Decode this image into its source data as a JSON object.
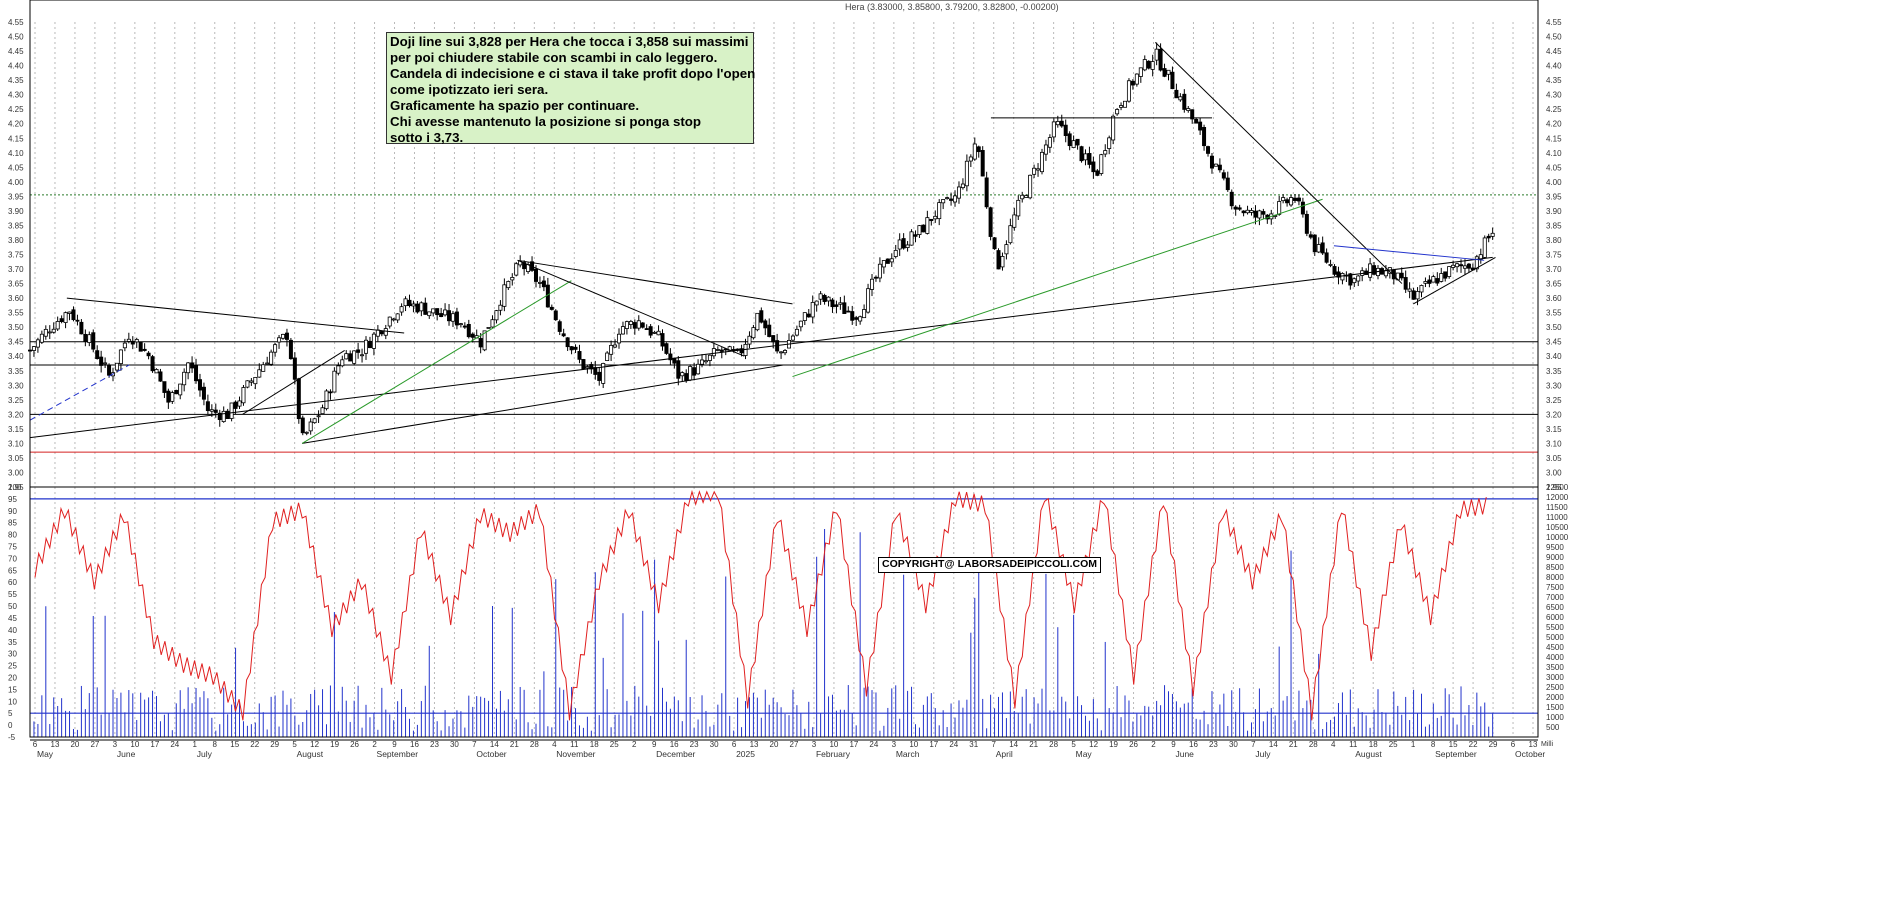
{
  "header": {
    "title": "Hera (3.83000, 3.85800, 3.79200, 3.82800, -0.00200)"
  },
  "annotation": {
    "lines": [
      "Doji line sui 3,828 per Hera che tocca i 3,858 sui massimi",
      "per poi chiudere stabile con scambi in calo leggero.",
      "Candela di indecisione e ci stava il take profit dopo l'open",
      "come ipotizzato ieri sera.",
      "Graficamente ha spazio per continuare.",
      "Chi avesse mantenuto la posizione si ponga stop",
      "sotto i 3,73."
    ]
  },
  "watermark": "COPYRIGHT@ LABORSADEIPICCOLI.COM",
  "chart_data": [
    {
      "type": "candlestick",
      "title": "Hera (3.83000, 3.85800, 3.79200, 3.82800, -0.00200)",
      "ylim": [
        2.95,
        4.55
      ],
      "y_ticks": [
        "4.55",
        "4.50",
        "4.45",
        "4.40",
        "4.35",
        "4.30",
        "4.25",
        "4.20",
        "4.15",
        "4.10",
        "4.05",
        "4.00",
        "3.95",
        "3.90",
        "3.85",
        "3.80",
        "3.75",
        "3.70",
        "3.65",
        "3.60",
        "3.55",
        "3.50",
        "3.45",
        "3.40",
        "3.35",
        "3.30",
        "3.25",
        "3.20",
        "3.15",
        "3.10",
        "3.05",
        "3.00",
        "2.95"
      ],
      "last": {
        "open": 3.83,
        "high": 3.858,
        "low": 3.792,
        "close": 3.828,
        "change": -0.002
      },
      "close_path": [
        [
          "2024-05-01",
          3.42
        ],
        [
          "2024-05-08",
          3.5
        ],
        [
          "2024-05-15",
          3.56
        ],
        [
          "2024-05-22",
          3.45
        ],
        [
          "2024-05-29",
          3.33
        ],
        [
          "2024-06-05",
          3.48
        ],
        [
          "2024-06-12",
          3.4
        ],
        [
          "2024-06-19",
          3.24
        ],
        [
          "2024-06-26",
          3.38
        ],
        [
          "2024-07-03",
          3.21
        ],
        [
          "2024-07-10",
          3.2
        ],
        [
          "2024-07-17",
          3.3
        ],
        [
          "2024-07-24",
          3.4
        ],
        [
          "2024-07-31",
          3.48
        ],
        [
          "2024-08-05",
          3.11
        ],
        [
          "2024-08-12",
          3.22
        ],
        [
          "2024-08-19",
          3.4
        ],
        [
          "2024-08-26",
          3.42
        ],
        [
          "2024-09-02",
          3.5
        ],
        [
          "2024-09-09",
          3.58
        ],
        [
          "2024-09-16",
          3.57
        ],
        [
          "2024-09-23",
          3.54
        ],
        [
          "2024-09-30",
          3.52
        ],
        [
          "2024-10-07",
          3.45
        ],
        [
          "2024-10-14",
          3.6
        ],
        [
          "2024-10-21",
          3.72
        ],
        [
          "2024-10-28",
          3.65
        ],
        [
          "2024-11-04",
          3.5
        ],
        [
          "2024-11-11",
          3.38
        ],
        [
          "2024-11-18",
          3.32
        ],
        [
          "2024-11-25",
          3.5
        ],
        [
          "2024-12-02",
          3.52
        ],
        [
          "2024-12-09",
          3.46
        ],
        [
          "2024-12-16",
          3.33
        ],
        [
          "2024-12-23",
          3.36
        ],
        [
          "2024-12-30",
          3.42
        ],
        [
          "2025-01-06",
          3.4
        ],
        [
          "2025-01-13",
          3.55
        ],
        [
          "2025-01-20",
          3.4
        ],
        [
          "2025-01-27",
          3.5
        ],
        [
          "2025-02-03",
          3.6
        ],
        [
          "2025-02-10",
          3.57
        ],
        [
          "2025-02-17",
          3.54
        ],
        [
          "2025-02-24",
          3.68
        ],
        [
          "2025-03-03",
          3.78
        ],
        [
          "2025-03-10",
          3.82
        ],
        [
          "2025-03-17",
          3.9
        ],
        [
          "2025-03-24",
          3.95
        ],
        [
          "2025-03-31",
          4.15
        ],
        [
          "2025-04-07",
          3.7
        ],
        [
          "2025-04-14",
          3.9
        ],
        [
          "2025-04-21",
          4.05
        ],
        [
          "2025-04-28",
          4.2
        ],
        [
          "2025-05-05",
          4.12
        ],
        [
          "2025-05-12",
          4.02
        ],
        [
          "2025-05-19",
          4.25
        ],
        [
          "2025-05-26",
          4.36
        ],
        [
          "2025-06-02",
          4.44
        ],
        [
          "2025-06-09",
          4.32
        ],
        [
          "2025-06-16",
          4.2
        ],
        [
          "2025-06-23",
          4.05
        ],
        [
          "2025-06-30",
          3.92
        ],
        [
          "2025-07-07",
          3.88
        ],
        [
          "2025-07-14",
          3.9
        ],
        [
          "2025-07-21",
          3.95
        ],
        [
          "2025-07-28",
          3.78
        ],
        [
          "2025-08-04",
          3.7
        ],
        [
          "2025-08-11",
          3.66
        ],
        [
          "2025-08-18",
          3.7
        ],
        [
          "2025-08-25",
          3.68
        ],
        [
          "2025-09-01",
          3.6
        ],
        [
          "2025-09-08",
          3.66
        ],
        [
          "2025-09-15",
          3.7
        ],
        [
          "2025-09-22",
          3.72
        ],
        [
          "2025-09-29",
          3.83
        ]
      ],
      "horizontal_levels": [
        3.955,
        3.45,
        3.37,
        3.2,
        3.07
      ],
      "x_axis": {
        "labels": [
          "May",
          "June",
          "July",
          "August",
          "September",
          "October",
          "November",
          "December",
          "2025",
          "February",
          "March",
          "April",
          "May",
          "June",
          "July",
          "August",
          "September",
          "October"
        ],
        "day_ticks": [
          "6",
          "13",
          "20",
          "27",
          "3",
          "10",
          "17",
          "24",
          "1",
          "8",
          "15",
          "22",
          "29",
          "5",
          "12",
          "19",
          "26",
          "2",
          "9",
          "16",
          "23",
          "30",
          "7",
          "14",
          "21",
          "28",
          "4",
          "11",
          "18",
          "25",
          "2",
          "9",
          "16",
          "23",
          "30",
          "6",
          "13",
          "20",
          "27",
          "3",
          "10",
          "17",
          "24",
          "3",
          "10",
          "17",
          "24",
          "31",
          "7",
          "14",
          "21",
          "28",
          "5",
          "12",
          "19",
          "26",
          "2",
          "9",
          "16",
          "23",
          "30",
          "7",
          "14",
          "21",
          "28",
          "4",
          "11",
          "18",
          "25",
          "1",
          "8",
          "15",
          "22",
          "29",
          "6",
          "13"
        ]
      }
    },
    {
      "type": "line",
      "series": [
        {
          "values": [
            65,
            90,
            60,
            88,
            35,
            25,
            20,
            5,
            85,
            90,
            40,
            60,
            20,
            82,
            45,
            88,
            80,
            90,
            5,
            60,
            90,
            50,
            95,
            98,
            10,
            88,
            40,
            92,
            15,
            90,
            50,
            95,
            92,
            10,
            97,
            50,
            96,
            20,
            95,
            15,
            90,
            60,
            88,
            5,
            92,
            30,
            85,
            45,
            90,
            92
          ]
        }
      ],
      "ylim": [
        -5,
        100
      ],
      "y_ticks": [
        "100",
        "95",
        "90",
        "85",
        "80",
        "75",
        "70",
        "65",
        "60",
        "55",
        "50",
        "45",
        "40",
        "35",
        "30",
        "25",
        "20",
        "15",
        "10",
        "5",
        "0",
        "-5"
      ],
      "reference_levels": [
        95,
        5
      ]
    },
    {
      "type": "bar",
      "ylim": [
        0,
        12500
      ],
      "y_ticks": [
        "12500",
        "12000",
        "11500",
        "11000",
        "10500",
        "10000",
        "9500",
        "9000",
        "8500",
        "8000",
        "7500",
        "7000",
        "6500",
        "6000",
        "5500",
        "5000",
        "4500",
        "4000",
        "3500",
        "3000",
        "2500",
        "2000",
        "1500",
        "1000",
        "500"
      ],
      "unit_label": "Milli"
    }
  ]
}
